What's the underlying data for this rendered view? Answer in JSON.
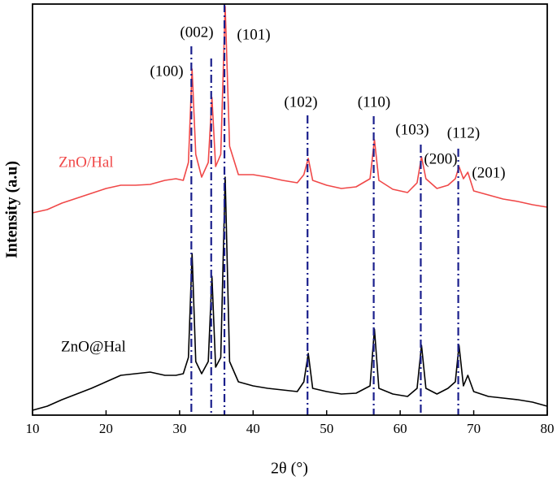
{
  "chart_data": {
    "type": "line",
    "x_label": "2θ (°)",
    "y_label": "Intensity (a.u)",
    "x": [
      10,
      12,
      14,
      16,
      18,
      20,
      22,
      24,
      26,
      28,
      29.5,
      30.5,
      31.2,
      31.7,
      32.2,
      33,
      33.9,
      34.4,
      34.9,
      35.6,
      36.2,
      36.8,
      38,
      40,
      42,
      44,
      46,
      46.9,
      47.5,
      48.1,
      50,
      52,
      54,
      55.9,
      56.5,
      57.1,
      59,
      61,
      62.3,
      62.9,
      63.5,
      65,
      66.5,
      67.5,
      68,
      68.6,
      69.2,
      70,
      72,
      74,
      76,
      78,
      80
    ],
    "series": [
      {
        "name": "ZnO/Hal",
        "color": "#f04848",
        "values": [
          249,
          253,
          261,
          267,
          273,
          279,
          283,
          283,
          284,
          289,
          291,
          289,
          311,
          426,
          321,
          293,
          311,
          391,
          306,
          321,
          503,
          331,
          296,
          296,
          293,
          289,
          286,
          296,
          316,
          289,
          283,
          279,
          281,
          291,
          339,
          289,
          278,
          274,
          286,
          318,
          291,
          279,
          283,
          291,
          306,
          291,
          299,
          276,
          271,
          266,
          263,
          259,
          256
        ]
      },
      {
        "name": "ZnO@Hal",
        "color": "#000000",
        "values": [
          6,
          11,
          19,
          26,
          33,
          41,
          49,
          51,
          53,
          49,
          49,
          51,
          71,
          199,
          66,
          51,
          66,
          171,
          59,
          71,
          293,
          66,
          41,
          36,
          33,
          31,
          29,
          41,
          76,
          33,
          29,
          26,
          27,
          36,
          106,
          33,
          26,
          23,
          33,
          86,
          33,
          26,
          33,
          41,
          86,
          36,
          49,
          29,
          23,
          21,
          19,
          16,
          11
        ]
      }
    ],
    "reference_lines": {
      "color": "#1a1f8c",
      "x": [
        31.6,
        34.3,
        36.1,
        47.4,
        56.4,
        62.8,
        67.9
      ]
    },
    "annotations": [
      "(100)",
      "(002)",
      "(101)",
      "(102)",
      "(110)",
      "(103)",
      "(200)",
      "(112)",
      "(201)"
    ],
    "xlim": [
      10,
      80
    ],
    "xticks": [
      10,
      20,
      30,
      40,
      50,
      60,
      70,
      80
    ],
    "ylim": [
      0,
      506
    ]
  }
}
